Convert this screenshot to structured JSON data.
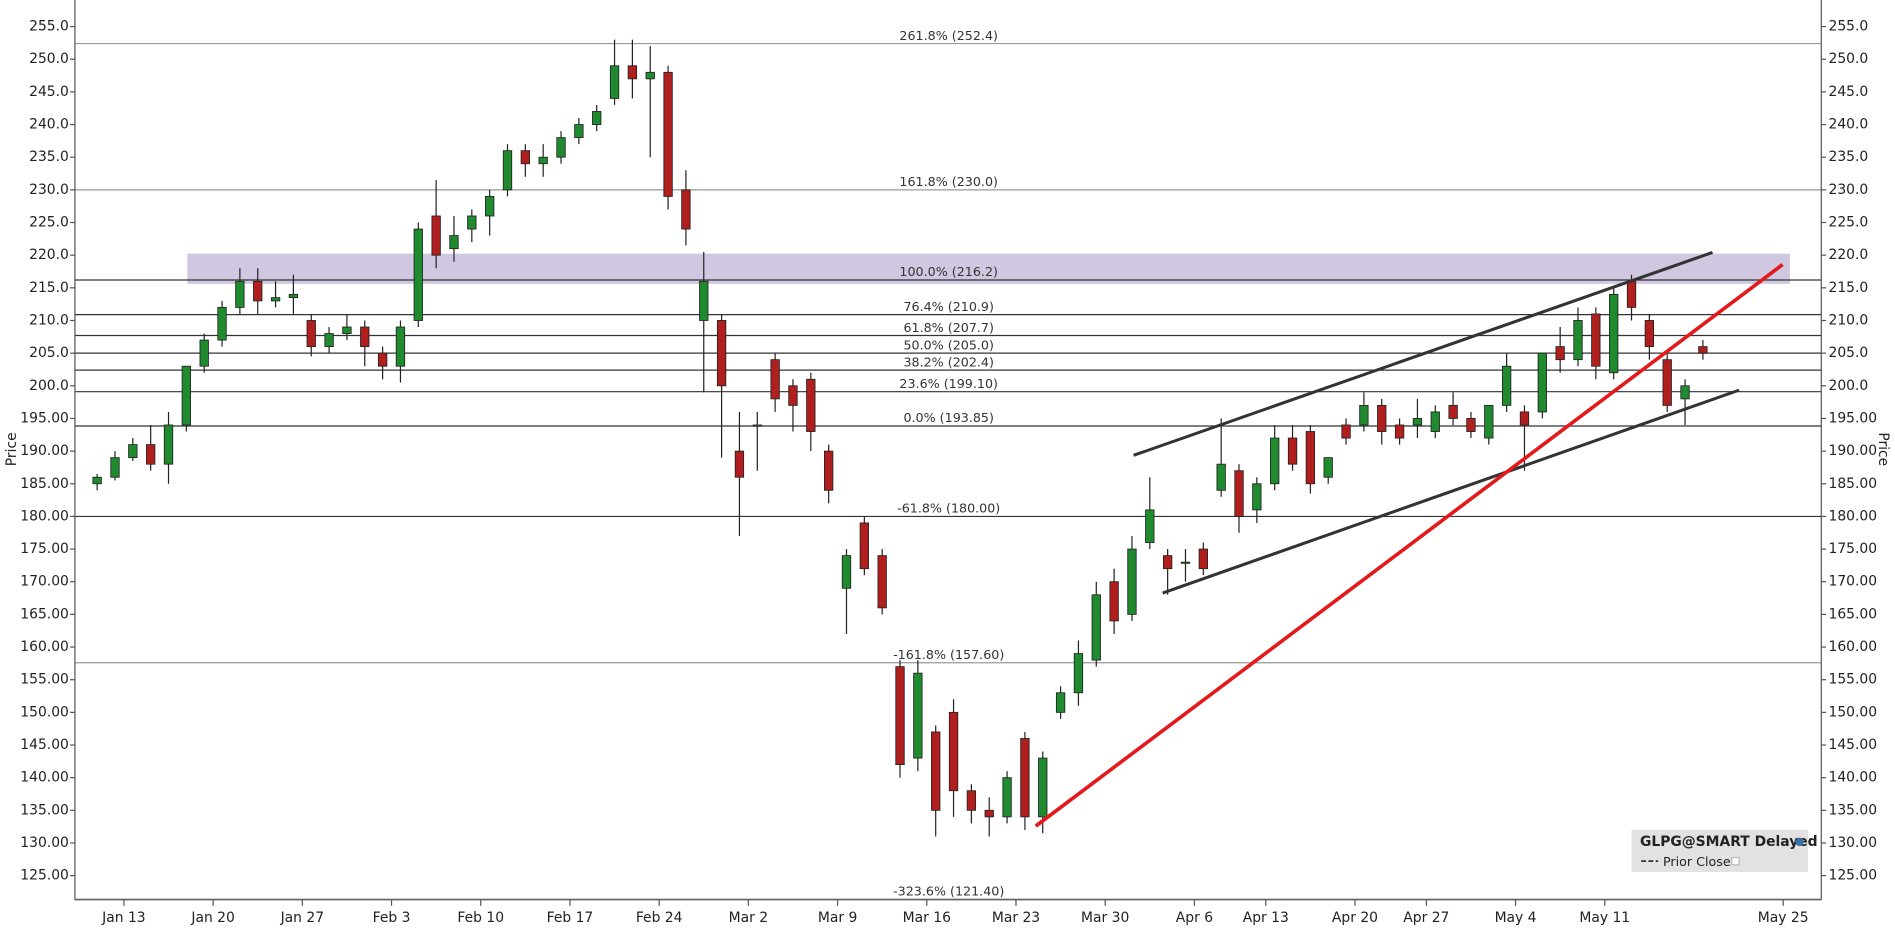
{
  "chart_data": {
    "type": "candlestick",
    "y_label": "Price",
    "categories": [
      null,
      null,
      "Jan 13",
      null,
      null,
      null,
      null,
      "Jan 20",
      null,
      null,
      null,
      null,
      "Jan 27",
      null,
      null,
      null,
      null,
      "Feb 3",
      null,
      null,
      null,
      null,
      "Feb 10",
      null,
      null,
      null,
      null,
      "Feb 17",
      null,
      null,
      null,
      null,
      "Feb 24",
      null,
      null,
      null,
      null,
      "Mar 2",
      null,
      null,
      null,
      null,
      "Mar 9",
      null,
      null,
      null,
      null,
      "Mar 16",
      null,
      null,
      null,
      null,
      "Mar 23",
      null,
      null,
      null,
      null,
      "Mar 30",
      null,
      null,
      null,
      null,
      "Apr 6",
      null,
      null,
      null,
      "Apr 13",
      null,
      null,
      null,
      null,
      "Apr 20",
      null,
      null,
      null,
      "Apr 27",
      null,
      null,
      null,
      null,
      "May 4",
      null,
      null,
      null,
      null,
      "May 11",
      null,
      null,
      null,
      null,
      null,
      null,
      null,
      null,
      null,
      "May 25",
      null
    ],
    "open": [
      185,
      186,
      189,
      191,
      188,
      194,
      203,
      207,
      212,
      216,
      213,
      213.5,
      210,
      206,
      208,
      209,
      205,
      203,
      210,
      226,
      221,
      224,
      226,
      230,
      236,
      234,
      235,
      238,
      240,
      244,
      249,
      247,
      248,
      230,
      210,
      210,
      190,
      194,
      204,
      200,
      201,
      190,
      169,
      179,
      174,
      157,
      143,
      147,
      150,
      138,
      135,
      134,
      146,
      134,
      150,
      153,
      158,
      170,
      165,
      176,
      174,
      173,
      175,
      184,
      187,
      181,
      185,
      192,
      193,
      186,
      194,
      194,
      197,
      194,
      194,
      193,
      197,
      195,
      192,
      197,
      196,
      196,
      206,
      204,
      211,
      202,
      216,
      210,
      204,
      198,
      206,
      null,
      null,
      null,
      null,
      null,
      null
    ],
    "high": [
      186.5,
      190,
      192,
      194,
      196,
      203,
      208,
      213,
      218,
      218,
      216,
      217,
      211,
      209,
      211,
      210,
      206,
      210,
      225,
      231.5,
      226,
      227,
      230,
      237,
      237,
      237,
      239,
      241,
      243,
      253,
      253,
      252,
      249,
      233,
      220.5,
      211,
      196,
      196,
      205,
      201,
      202,
      191,
      175,
      180,
      175,
      158,
      158,
      148,
      152,
      139,
      137,
      141,
      147,
      144,
      154,
      161,
      170,
      172,
      177,
      186,
      175,
      175,
      176,
      195,
      188,
      186,
      194,
      194,
      194,
      189,
      195,
      199,
      198,
      195,
      198,
      197,
      199,
      196,
      197,
      205,
      197,
      205,
      209,
      212,
      212,
      215,
      217,
      211,
      205,
      201,
      207,
      null,
      null,
      null,
      null,
      null,
      null
    ],
    "low": [
      184,
      185.5,
      188.5,
      187,
      185,
      193,
      202,
      206,
      211,
      211,
      212,
      211,
      204.5,
      205,
      207,
      203,
      201,
      200.5,
      209,
      218,
      219,
      222,
      223,
      229,
      232,
      232,
      234,
      237,
      239,
      243,
      244,
      235,
      227,
      221.5,
      199,
      189,
      177,
      187,
      196,
      193,
      190,
      182,
      162,
      171,
      165,
      140,
      141,
      131,
      134,
      133,
      131,
      133,
      132,
      131.5,
      149,
      151,
      157,
      162,
      164,
      175,
      168,
      170,
      171,
      183,
      177.5,
      179,
      184,
      187,
      183.5,
      185,
      191,
      193,
      191,
      191,
      192,
      192,
      194,
      192,
      191,
      196,
      187,
      195,
      202,
      203,
      201,
      201,
      210,
      204,
      196,
      194,
      204,
      null,
      null,
      null,
      null,
      null,
      null
    ],
    "close": [
      186,
      189,
      191,
      188,
      194,
      203,
      207,
      212,
      216,
      213,
      213.5,
      214,
      206,
      208,
      209,
      206,
      203,
      209,
      224,
      220,
      223,
      226,
      229,
      236,
      234,
      235,
      238,
      240,
      242,
      249,
      247,
      248,
      229,
      224,
      216,
      200,
      186,
      194,
      198,
      197,
      193,
      184,
      174,
      172,
      166,
      142,
      156,
      135,
      138,
      135,
      134,
      140,
      134,
      143,
      153,
      159,
      168,
      164,
      175,
      181,
      172,
      173,
      172,
      188,
      180,
      185,
      192,
      188,
      185,
      189,
      192,
      197,
      193,
      192,
      195,
      196,
      195,
      193,
      197,
      203,
      194,
      205,
      204,
      210,
      203,
      214,
      212,
      206,
      197,
      200,
      205,
      null,
      null,
      null,
      null,
      null,
      null
    ],
    "up_color": "#1f8a2e",
    "down_color": "#b01e1e",
    "ylim": [
      121.3,
      259.07
    ],
    "yticks": [
      {
        "value": 125,
        "label": "125.00"
      },
      {
        "value": 130,
        "label": "130.00"
      },
      {
        "value": 135,
        "label": "135.00"
      },
      {
        "value": 140,
        "label": "140.00"
      },
      {
        "value": 145,
        "label": "145.00"
      },
      {
        "value": 150,
        "label": "150.00"
      },
      {
        "value": 155,
        "label": "155.00"
      },
      {
        "value": 160,
        "label": "160.00"
      },
      {
        "value": 165,
        "label": "165.00"
      },
      {
        "value": 170,
        "label": "170.00"
      },
      {
        "value": 175,
        "label": "175.00"
      },
      {
        "value": 180,
        "label": "180.00"
      },
      {
        "value": 185,
        "label": "185.00"
      },
      {
        "value": 190,
        "label": "190.00"
      },
      {
        "value": 195,
        "label": "195.00"
      },
      {
        "value": 200,
        "label": "200.0"
      },
      {
        "value": 205,
        "label": "205.0"
      },
      {
        "value": 210,
        "label": "210.0"
      },
      {
        "value": 215,
        "label": "215.0"
      },
      {
        "value": 220,
        "label": "220.0"
      },
      {
        "value": 225,
        "label": "225.0"
      },
      {
        "value": 230,
        "label": "230.0"
      },
      {
        "value": 235,
        "label": "235.0"
      },
      {
        "value": 240,
        "label": "240.0"
      },
      {
        "value": 245,
        "label": "245.0"
      },
      {
        "value": 250,
        "label": "250.0"
      },
      {
        "value": 255,
        "label": "255.0"
      }
    ],
    "fib_levels": [
      {
        "value": 252.4,
        "label": "261.8% (252.4)",
        "color": "#9a9a9a"
      },
      {
        "value": 230.0,
        "label": "161.8% (230.0)",
        "color": "#9a9a9a"
      },
      {
        "value": 216.2,
        "label": "100.0% (216.2)",
        "color": "#333333"
      },
      {
        "value": 210.9,
        "label": "76.4% (210.9)",
        "color": "#333333"
      },
      {
        "value": 207.7,
        "label": "61.8% (207.7)",
        "color": "#333333"
      },
      {
        "value": 205.0,
        "label": "50.0% (205.0)",
        "color": "#333333"
      },
      {
        "value": 202.4,
        "label": "38.2% (202.4)",
        "color": "#333333"
      },
      {
        "value": 199.1,
        "label": "23.6% (199.10)",
        "color": "#333333"
      },
      {
        "value": 193.85,
        "label": "0.0% (193.85)",
        "color": "#333333"
      },
      {
        "value": 180.0,
        "label": "-61.8% (180.00)",
        "color": "#333333"
      },
      {
        "value": 157.6,
        "label": "-161.8% (157.60)",
        "color": "#9a9a9a"
      },
      {
        "value": 121.4,
        "label": "-323.6% (121.40)",
        "color": "#9a9a9a"
      }
    ],
    "legend": {
      "title": "GLPG@SMART Delayed",
      "item": "Prior Close"
    }
  }
}
